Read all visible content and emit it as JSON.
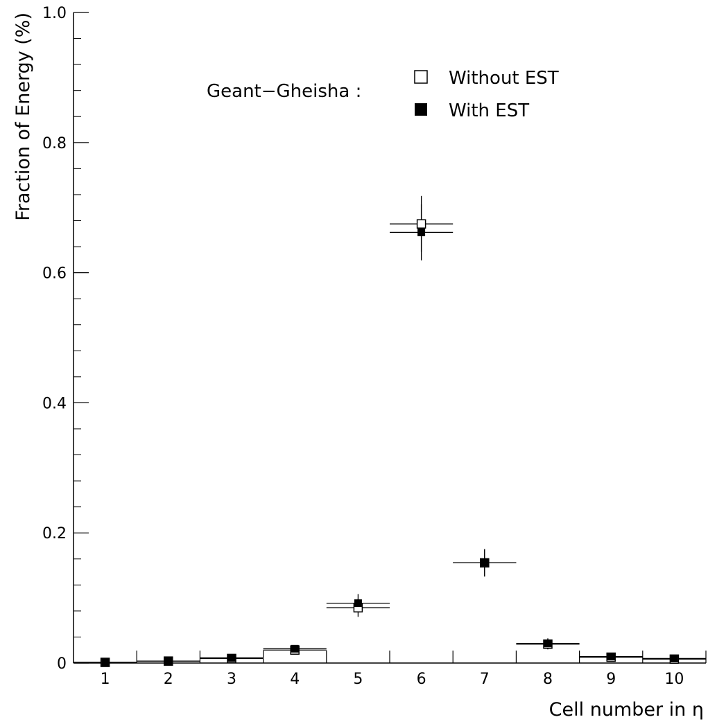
{
  "chart_data": {
    "type": "scatter",
    "xlabel": "Cell number in η",
    "ylabel": "Fraction of Energy (%)",
    "xlim": [
      0.5,
      10.5
    ],
    "ylim": [
      0,
      1.0
    ],
    "x_ticks": [
      "1",
      "2",
      "3",
      "4",
      "5",
      "6",
      "7",
      "8",
      "9",
      "10"
    ],
    "y_ticks": [
      "0",
      "0.2",
      "0.4",
      "0.6",
      "0.8",
      "1.0"
    ],
    "y_tick_values": [
      0,
      0.2,
      0.4,
      0.6,
      0.8,
      1.0
    ],
    "grid": false,
    "legend_title": "Geant−Gheisha :",
    "legend_position": "top-right",
    "series": [
      {
        "name": "Without EST",
        "marker": "open-square",
        "color": "#000000",
        "x": [
          1,
          2,
          3,
          4,
          5,
          6,
          7,
          8,
          9,
          10
        ],
        "y": [
          0.001,
          0.003,
          0.007,
          0.02,
          0.085,
          0.675,
          0.154,
          0.029,
          0.009,
          0.006
        ],
        "yerr": [
          0.0,
          0.0,
          0.002,
          0.005,
          0.014,
          0.043,
          0.021,
          0.008,
          0.003,
          0.002
        ],
        "xerr": [
          0.5,
          0.5,
          0.5,
          0.5,
          0.5,
          0.5,
          0.5,
          0.5,
          0.5,
          0.5
        ]
      },
      {
        "name": "With EST",
        "marker": "filled-square",
        "color": "#000000",
        "x": [
          1,
          2,
          3,
          4,
          5,
          6,
          7,
          8,
          9,
          10
        ],
        "y": [
          0.001,
          0.003,
          0.008,
          0.022,
          0.092,
          0.662,
          0.154,
          0.03,
          0.01,
          0.007
        ],
        "yerr": [
          0.0,
          0.0,
          0.002,
          0.005,
          0.014,
          0.043,
          0.021,
          0.008,
          0.003,
          0.002
        ],
        "xerr": [
          0.5,
          0.5,
          0.5,
          0.5,
          0.5,
          0.5,
          0.5,
          0.5,
          0.5,
          0.5
        ]
      }
    ]
  }
}
